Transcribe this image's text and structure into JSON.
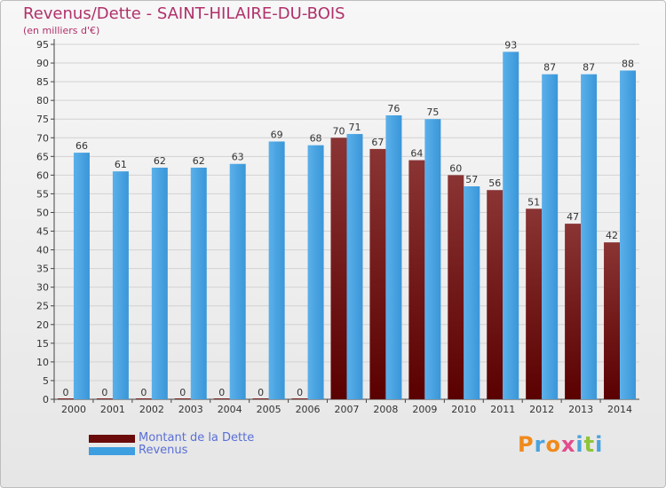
{
  "header": {
    "title": "Revenus/Dette - SAINT-HILAIRE-DU-BOIS",
    "subtitle": "(en milliers d'€)"
  },
  "legend": {
    "items": [
      {
        "label": "Montant de la Dette",
        "color": "#6b0a0a"
      },
      {
        "label": "Revenus",
        "color": "#3d9ee0"
      }
    ]
  },
  "logo": {
    "text": "Proxiti",
    "colors": [
      "#f08a1c",
      "#4aa3df",
      "#f08a1c",
      "#e34b8c",
      "#4aa3df",
      "#8fc43a",
      "#4aa3df"
    ]
  },
  "chart_data": {
    "type": "bar",
    "title": "Revenus/Dette - SAINT-HILAIRE-DU-BOIS",
    "subtitle": "(en milliers d'€)",
    "categories": [
      "2000",
      "2001",
      "2002",
      "2003",
      "2004",
      "2005",
      "2006",
      "2007",
      "2008",
      "2009",
      "2010",
      "2011",
      "2012",
      "2013",
      "2014"
    ],
    "series": [
      {
        "name": "Montant de la Dette",
        "color": "#7a1c1c",
        "values": [
          0,
          0,
          0,
          0,
          0,
          0,
          0,
          70,
          67,
          64,
          60,
          56,
          51,
          47,
          42
        ]
      },
      {
        "name": "Revenus",
        "color": "#3d9ee0",
        "values": [
          66,
          61,
          62,
          62,
          63,
          69,
          68,
          71,
          76,
          75,
          57,
          93,
          87,
          87,
          88
        ]
      }
    ],
    "ylim": [
      0,
      95
    ],
    "ytick_step": 5,
    "grid": true,
    "legend_position": "bottom-left"
  }
}
